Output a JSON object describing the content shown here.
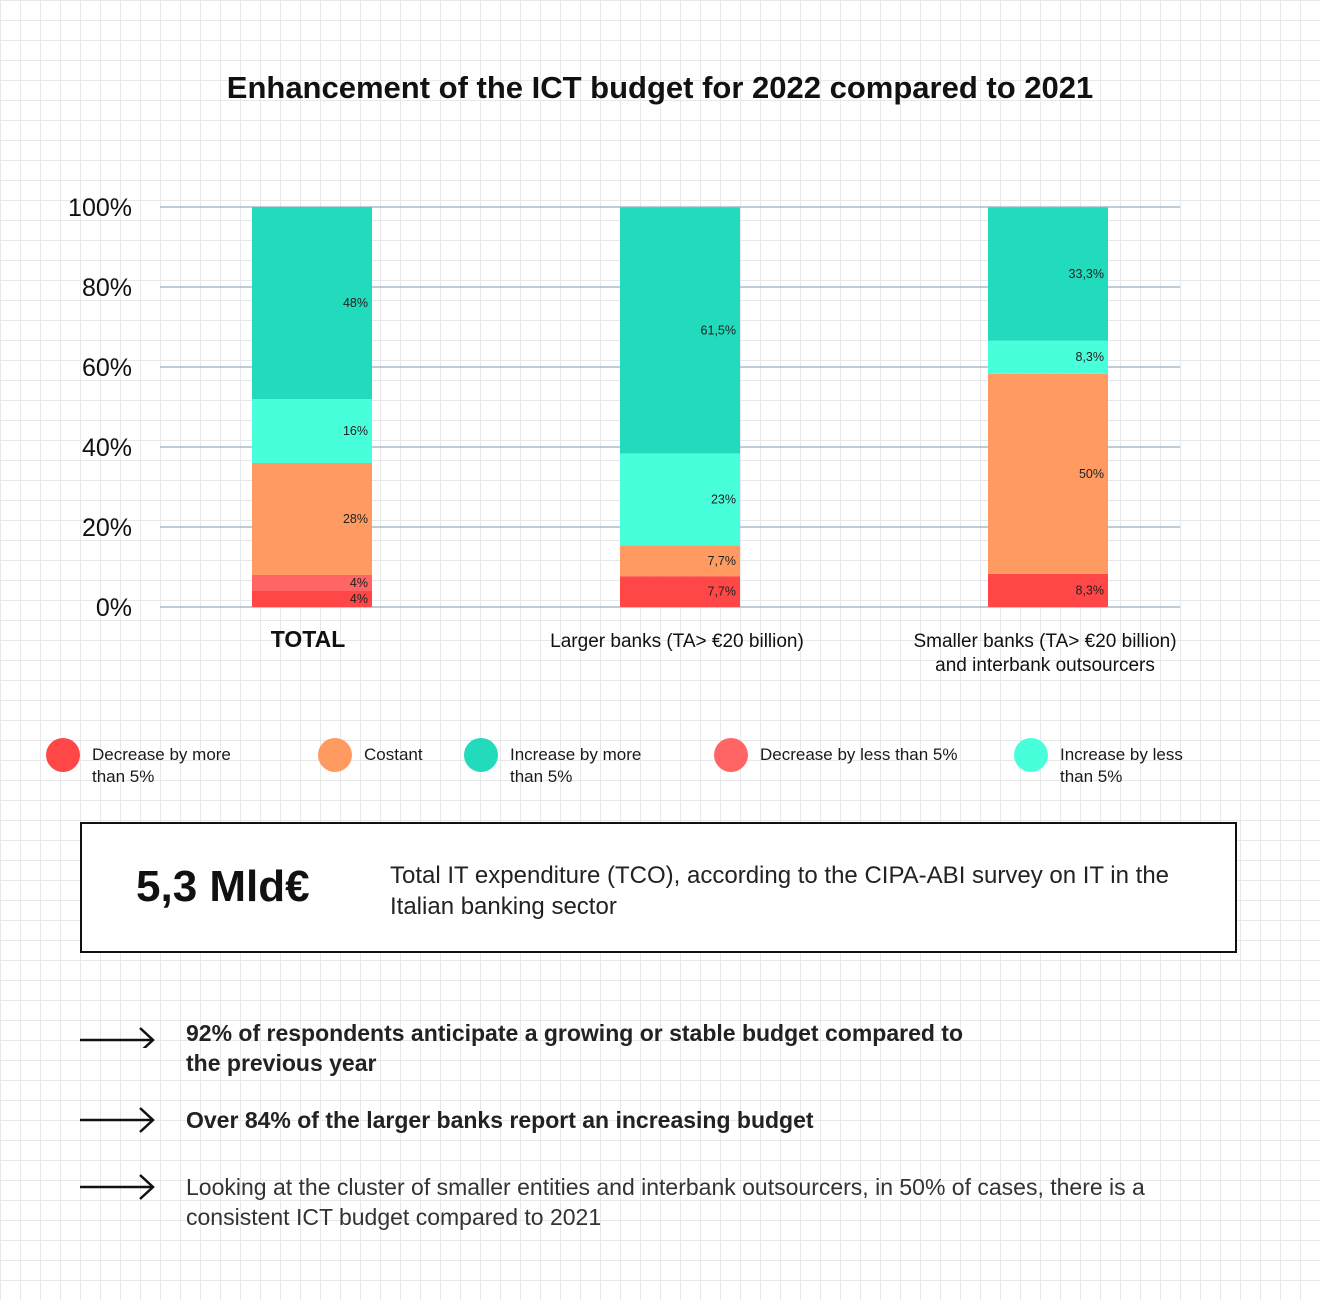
{
  "title": "Enhancement of the ICT budget for 2022 compared to 2021",
  "chart_data": {
    "type": "bar",
    "stacked": true,
    "categories": [
      [
        "TOTAL"
      ],
      [
        "Larger banks (TA> €20 billion)"
      ],
      [
        "Smaller banks (TA> €20 billion)",
        "and interbank outsourcers"
      ]
    ],
    "y_ticks": [
      "0%",
      "20%",
      "40%",
      "60%",
      "80%",
      "100%"
    ],
    "ylim": [
      0,
      100
    ],
    "series": [
      {
        "name": "Decrease by more than 5%",
        "color": "#ff4747",
        "values": [
          4,
          7.7,
          8.3
        ],
        "labels": [
          "4%",
          "7,7%",
          "8,3%"
        ]
      },
      {
        "name": "Decrease by less than 5%",
        "color": "#ff6565",
        "values": [
          4,
          0,
          0
        ],
        "labels": [
          "4%",
          "",
          ""
        ]
      },
      {
        "name": "Costant",
        "color": "#ff9b61",
        "values": [
          28,
          7.7,
          50
        ],
        "labels": [
          "28%",
          "7,7%",
          "50%"
        ]
      },
      {
        "name": "Increase by less than 5%",
        "color": "#48ffdc",
        "values": [
          16,
          23,
          8.3
        ],
        "labels": [
          "16%",
          "23%",
          "8,3%"
        ]
      },
      {
        "name": "Increase by more than 5%",
        "color": "#22dbbd",
        "values": [
          48,
          61.5,
          33.3
        ],
        "labels": [
          "48%",
          "61,5%",
          "33,3%"
        ]
      }
    ]
  },
  "legend": [
    {
      "label": "Decrease by more than 5%",
      "color": "#ff4747"
    },
    {
      "label": "Costant",
      "color": "#ff9b61"
    },
    {
      "label": "Increase by more than 5%",
      "color": "#22dbbd"
    },
    {
      "label": "Decrease by less than 5%",
      "color": "#ff6565"
    },
    {
      "label": "Increase by less than 5%",
      "color": "#48ffdc"
    }
  ],
  "kpi": {
    "value": "5,3 Mld€",
    "description": "Total IT expenditure (TCO), according to the CIPA-ABI survey on IT in the Italian banking sector"
  },
  "bullets": [
    {
      "text": "92% of respondents anticipate a growing or stable budget compared to the previous year"
    },
    {
      "text": "Over 84% of the larger banks report an increasing budget"
    },
    {
      "text": "Looking at the cluster of smaller entities and interbank outsourcers, in 50% of cases, there is a consistent ICT budget compared to 2021"
    }
  ]
}
